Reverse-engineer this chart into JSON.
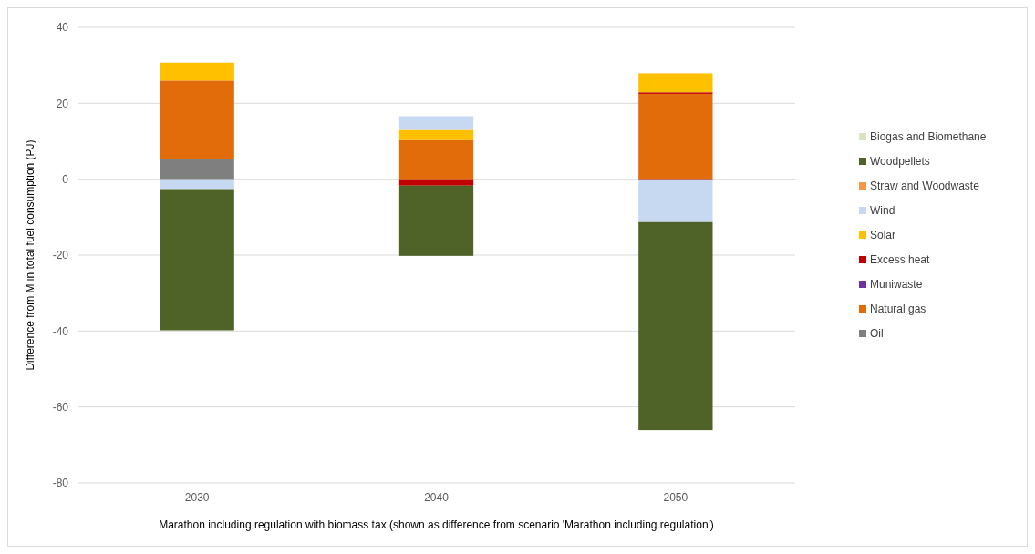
{
  "chart_data": {
    "type": "bar",
    "stacked": true,
    "xlabel": "Marathon including regulation with biomass tax (shown as difference from scenario 'Marathon including regulation')",
    "ylabel": "Difference from M in total fuel consumption (PJ)",
    "categories": [
      "2030",
      "2040",
      "2050"
    ],
    "ylim": [
      -80,
      40
    ],
    "yticks": [
      -80,
      -60,
      -40,
      -20,
      0,
      20,
      40
    ],
    "grid": "y",
    "legend": "right",
    "series": [
      {
        "name": "Oil",
        "color": "#7f7f7f",
        "values": [
          5.3,
          null,
          null
        ]
      },
      {
        "name": "Natural gas",
        "color": "#e36c0a",
        "values": [
          20.7,
          10.3,
          22.5
        ]
      },
      {
        "name": "Muniwaste",
        "color": "#7030a0",
        "values": [
          null,
          null,
          -0.3
        ]
      },
      {
        "name": "Excess heat",
        "color": "#c00000",
        "values": [
          null,
          -1.7,
          0.4
        ]
      },
      {
        "name": "Solar",
        "color": "#ffc000",
        "values": [
          4.7,
          2.7,
          5.0
        ]
      },
      {
        "name": "Wind",
        "color": "#c6d9f1",
        "values": [
          -2.6,
          3.6,
          -11.0
        ]
      },
      {
        "name": "Straw and Woodwaste",
        "color": "#f79646",
        "values": [
          null,
          null,
          null
        ]
      },
      {
        "name": "Woodpellets",
        "color": "#4f6228",
        "values": [
          -37.2,
          -18.5,
          -54.8
        ]
      },
      {
        "name": "Biogas and Biomethane",
        "color": "#d7e4bd",
        "values": [
          null,
          null,
          null
        ]
      }
    ]
  }
}
